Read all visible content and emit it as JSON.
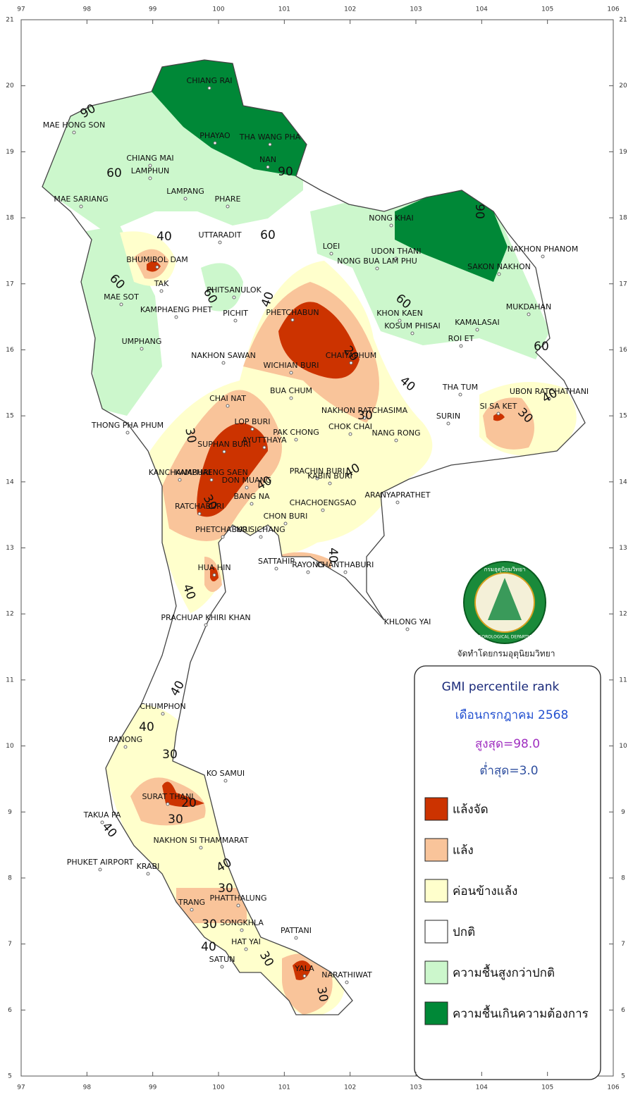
{
  "map": {
    "xlim": [
      97,
      106
    ],
    "ylim": [
      5,
      21
    ],
    "xticks": [
      97,
      98,
      99,
      100,
      101,
      102,
      103,
      104,
      105,
      106
    ],
    "yticks": [
      5,
      6,
      7,
      8,
      9,
      10,
      11,
      12,
      13,
      14,
      15,
      16,
      17,
      18,
      19,
      20,
      21
    ],
    "cities": [
      "CHIANG RAI",
      "MAE HONG SON",
      "PHAYAO",
      "THA WANG PHA",
      "CHIANG MAI",
      "LAMPHUN",
      "NAN",
      "MAE SARIANG",
      "LAMPANG",
      "PHARE",
      "NONG KHAI",
      "UTTARADIT",
      "LOEI",
      "UDON THANI",
      "NAKHON PHANOM",
      "BHUMIBOL DAM",
      "NONG BUA LAM PHU",
      "SAKON NAKHON",
      "TAK",
      "PHITSANULOK",
      "MAE SOT",
      "KAMPHAENG PHET",
      "PICHIT",
      "PHETCHABUN",
      "KHON KAEN",
      "MUKDAHAN",
      "KOSUM PHISAI",
      "KAMALASAI",
      "ROI ET",
      "UMPHANG",
      "NAKHON SAWAN",
      "CHAIYAPHUM",
      "WICHIAN BURI",
      "THA TUM",
      "UBON RATCHATHANI",
      "BUA CHUM",
      "CHAI NAT",
      "NAKHON RATCHASIMA",
      "SI SA KET",
      "THONG PHA PHUM",
      "LOP BURI",
      "SURIN",
      "CHOK CHAI",
      "PAK CHONG",
      "NANG RONG",
      "SUPHAN BURI",
      "AYUTTHAYA",
      "PRACHIN BURI",
      "KANCHANABURI",
      "KAMPHAENG SAEN",
      "KABIN BURI",
      "DON MUANG",
      "ARANYAPRATHET",
      "BANG NA",
      "RATCHABURI",
      "CHACHOENGSAO",
      "CHON BURI",
      "PHETCHABURI",
      "KO SICHANG",
      "SATTAHIP",
      "RAYONG",
      "CHANTHABURI",
      "HUA HIN",
      "PRACHUAP KHIRI KHAN",
      "KHLONG YAI",
      "CHUMPHON",
      "RANONG",
      "KO SAMUI",
      "SURAT THANI",
      "TAKUA PA",
      "NAKHON SI THAMMARAT",
      "PHUKET AIRPORT",
      "KRABI",
      "PHATTHALUNG",
      "TRANG",
      "SONGKHLA",
      "PATTANI",
      "HAT YAI",
      "SATUN",
      "YALA",
      "NARATHIWAT"
    ],
    "contour_labels": [
      90,
      90,
      60,
      60,
      90,
      40,
      60,
      60,
      40,
      60,
      60,
      20,
      40,
      40,
      30,
      30,
      30,
      40,
      40,
      30,
      40,
      40,
      40,
      40,
      30,
      20,
      30,
      40,
      40,
      30,
      30,
      40,
      30,
      30
    ],
    "logo": {
      "top": "กรมอุตุนิยมวิทยา",
      "bottom": "METEOROLOGICAL DEPARTMENT"
    },
    "credit": "จัดทำโดยกรมอุตุนิยมวิทยา"
  },
  "legend": {
    "title": "GMI percentile rank",
    "period": "เดือนกรกฎาคม 2568",
    "max": "สูงสุด=98.0",
    "min": "ต่ำสุด=3.0",
    "items": [
      {
        "label": "แล้งจัด",
        "color": "#cc3300"
      },
      {
        "label": "แล้ง",
        "color": "#f9c49a"
      },
      {
        "label": "ค่อนข้างแล้ง",
        "color": "#ffffcc"
      },
      {
        "label": "ปกติ",
        "color": "#ffffff"
      },
      {
        "label": "ความชื้นสูงกว่าปกติ",
        "color": "#ccf7cc"
      },
      {
        "label": "ความชื้นเกินความต้องการ",
        "color": "#008837"
      }
    ]
  }
}
